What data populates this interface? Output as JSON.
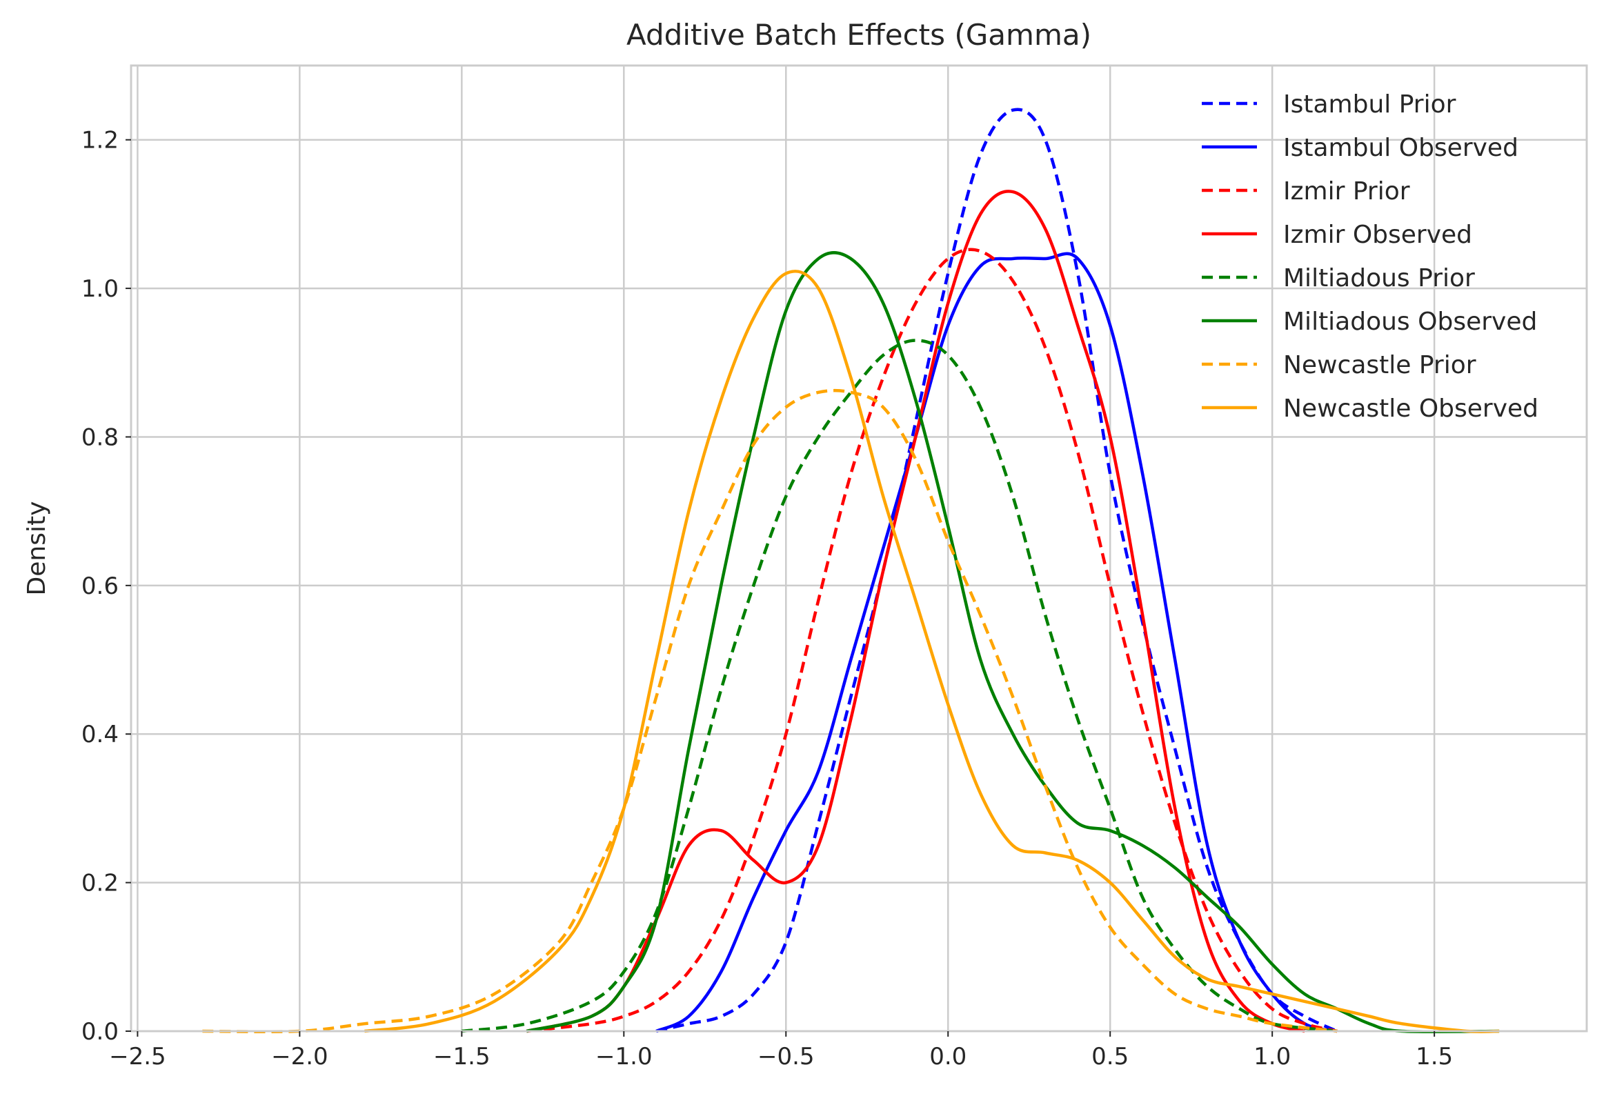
{
  "chart_data": {
    "type": "line",
    "title": "Additive Batch Effects (Gamma)",
    "xlabel": "",
    "ylabel": "Density",
    "xlim": [
      -2.52,
      1.97
    ],
    "ylim": [
      0.0,
      1.3
    ],
    "xticks": [
      -2.5,
      -2.0,
      -1.5,
      -1.0,
      -0.5,
      0.0,
      0.5,
      1.0,
      1.5
    ],
    "xtick_labels": [
      "−2.5",
      "−2.0",
      "−1.5",
      "−1.0",
      "−0.5",
      "0.0",
      "0.5",
      "1.0",
      "1.5"
    ],
    "yticks": [
      0.0,
      0.2,
      0.4,
      0.6,
      0.8,
      1.0,
      1.2
    ],
    "ytick_labels": [
      "0.0",
      "0.2",
      "0.4",
      "0.6",
      "0.8",
      "1.0",
      "1.2"
    ],
    "grid": true,
    "legend_position": "top-right",
    "series": [
      {
        "name": "Istambul Prior",
        "color": "#0000ff",
        "style": "dashed",
        "points": [
          [
            -0.9,
            0.0
          ],
          [
            -0.8,
            0.01
          ],
          [
            -0.7,
            0.02
          ],
          [
            -0.6,
            0.05
          ],
          [
            -0.5,
            0.12
          ],
          [
            -0.4,
            0.28
          ],
          [
            -0.3,
            0.45
          ],
          [
            -0.2,
            0.62
          ],
          [
            -0.1,
            0.82
          ],
          [
            0.0,
            1.02
          ],
          [
            0.1,
            1.18
          ],
          [
            0.2,
            1.24
          ],
          [
            0.3,
            1.2
          ],
          [
            0.4,
            1.02
          ],
          [
            0.5,
            0.75
          ],
          [
            0.6,
            0.55
          ],
          [
            0.7,
            0.38
          ],
          [
            0.8,
            0.22
          ],
          [
            0.9,
            0.12
          ],
          [
            1.0,
            0.05
          ],
          [
            1.1,
            0.02
          ],
          [
            1.2,
            0.0
          ]
        ]
      },
      {
        "name": "Istambul Observed",
        "color": "#0000ff",
        "style": "solid",
        "points": [
          [
            -0.9,
            0.0
          ],
          [
            -0.8,
            0.02
          ],
          [
            -0.7,
            0.08
          ],
          [
            -0.6,
            0.18
          ],
          [
            -0.5,
            0.27
          ],
          [
            -0.4,
            0.35
          ],
          [
            -0.3,
            0.5
          ],
          [
            -0.2,
            0.65
          ],
          [
            -0.1,
            0.8
          ],
          [
            0.0,
            0.95
          ],
          [
            0.1,
            1.03
          ],
          [
            0.2,
            1.04
          ],
          [
            0.3,
            1.04
          ],
          [
            0.4,
            1.04
          ],
          [
            0.5,
            0.95
          ],
          [
            0.6,
            0.75
          ],
          [
            0.7,
            0.5
          ],
          [
            0.8,
            0.25
          ],
          [
            0.9,
            0.12
          ],
          [
            1.0,
            0.05
          ],
          [
            1.1,
            0.01
          ],
          [
            1.2,
            0.0
          ]
        ]
      },
      {
        "name": "Izmir Prior",
        "color": "#ff0000",
        "style": "dashed",
        "points": [
          [
            -1.3,
            0.0
          ],
          [
            -1.1,
            0.01
          ],
          [
            -1.0,
            0.02
          ],
          [
            -0.9,
            0.04
          ],
          [
            -0.8,
            0.08
          ],
          [
            -0.7,
            0.15
          ],
          [
            -0.6,
            0.26
          ],
          [
            -0.5,
            0.4
          ],
          [
            -0.4,
            0.58
          ],
          [
            -0.3,
            0.75
          ],
          [
            -0.2,
            0.88
          ],
          [
            -0.1,
            0.98
          ],
          [
            0.0,
            1.04
          ],
          [
            0.1,
            1.05
          ],
          [
            0.2,
            1.01
          ],
          [
            0.3,
            0.92
          ],
          [
            0.4,
            0.78
          ],
          [
            0.5,
            0.6
          ],
          [
            0.6,
            0.43
          ],
          [
            0.7,
            0.28
          ],
          [
            0.8,
            0.16
          ],
          [
            0.9,
            0.08
          ],
          [
            1.0,
            0.03
          ],
          [
            1.1,
            0.01
          ],
          [
            1.2,
            0.0
          ]
        ]
      },
      {
        "name": "Izmir Observed",
        "color": "#ff0000",
        "style": "solid",
        "points": [
          [
            -1.3,
            0.0
          ],
          [
            -1.1,
            0.02
          ],
          [
            -1.0,
            0.06
          ],
          [
            -0.9,
            0.15
          ],
          [
            -0.8,
            0.25
          ],
          [
            -0.7,
            0.27
          ],
          [
            -0.6,
            0.23
          ],
          [
            -0.5,
            0.2
          ],
          [
            -0.4,
            0.25
          ],
          [
            -0.3,
            0.42
          ],
          [
            -0.2,
            0.62
          ],
          [
            -0.1,
            0.8
          ],
          [
            0.0,
            0.98
          ],
          [
            0.1,
            1.1
          ],
          [
            0.2,
            1.13
          ],
          [
            0.3,
            1.08
          ],
          [
            0.4,
            0.95
          ],
          [
            0.5,
            0.8
          ],
          [
            0.6,
            0.56
          ],
          [
            0.7,
            0.3
          ],
          [
            0.8,
            0.12
          ],
          [
            0.9,
            0.04
          ],
          [
            1.0,
            0.01
          ],
          [
            1.1,
            0.0
          ]
        ]
      },
      {
        "name": "Miltiadous Prior",
        "color": "#008000",
        "style": "dashed",
        "points": [
          [
            -1.5,
            0.0
          ],
          [
            -1.3,
            0.01
          ],
          [
            -1.1,
            0.04
          ],
          [
            -1.0,
            0.08
          ],
          [
            -0.9,
            0.16
          ],
          [
            -0.8,
            0.3
          ],
          [
            -0.7,
            0.46
          ],
          [
            -0.6,
            0.6
          ],
          [
            -0.5,
            0.72
          ],
          [
            -0.4,
            0.8
          ],
          [
            -0.3,
            0.86
          ],
          [
            -0.2,
            0.91
          ],
          [
            -0.1,
            0.93
          ],
          [
            0.0,
            0.91
          ],
          [
            0.1,
            0.84
          ],
          [
            0.2,
            0.72
          ],
          [
            0.3,
            0.56
          ],
          [
            0.4,
            0.42
          ],
          [
            0.5,
            0.3
          ],
          [
            0.6,
            0.18
          ],
          [
            0.7,
            0.11
          ],
          [
            0.8,
            0.06
          ],
          [
            0.9,
            0.03
          ],
          [
            1.0,
            0.01
          ],
          [
            1.2,
            0.0
          ]
        ]
      },
      {
        "name": "Miltiadous Observed",
        "color": "#008000",
        "style": "solid",
        "points": [
          [
            -1.3,
            0.0
          ],
          [
            -1.1,
            0.02
          ],
          [
            -1.0,
            0.06
          ],
          [
            -0.9,
            0.15
          ],
          [
            -0.8,
            0.38
          ],
          [
            -0.7,
            0.6
          ],
          [
            -0.6,
            0.8
          ],
          [
            -0.5,
            0.97
          ],
          [
            -0.4,
            1.04
          ],
          [
            -0.3,
            1.04
          ],
          [
            -0.2,
            0.98
          ],
          [
            -0.1,
            0.85
          ],
          [
            0.0,
            0.68
          ],
          [
            0.1,
            0.5
          ],
          [
            0.2,
            0.4
          ],
          [
            0.3,
            0.33
          ],
          [
            0.4,
            0.28
          ],
          [
            0.5,
            0.27
          ],
          [
            0.6,
            0.25
          ],
          [
            0.7,
            0.22
          ],
          [
            0.8,
            0.18
          ],
          [
            0.9,
            0.14
          ],
          [
            1.0,
            0.09
          ],
          [
            1.1,
            0.05
          ],
          [
            1.2,
            0.03
          ],
          [
            1.3,
            0.01
          ],
          [
            1.4,
            0.0
          ],
          [
            1.7,
            0.0
          ]
        ]
      },
      {
        "name": "Newcastle Prior",
        "color": "#ffa500",
        "style": "dashed",
        "points": [
          [
            -2.3,
            0.0
          ],
          [
            -2.0,
            0.0
          ],
          [
            -1.8,
            0.01
          ],
          [
            -1.6,
            0.02
          ],
          [
            -1.4,
            0.05
          ],
          [
            -1.2,
            0.12
          ],
          [
            -1.1,
            0.2
          ],
          [
            -1.0,
            0.3
          ],
          [
            -0.9,
            0.45
          ],
          [
            -0.8,
            0.6
          ],
          [
            -0.7,
            0.7
          ],
          [
            -0.6,
            0.79
          ],
          [
            -0.5,
            0.84
          ],
          [
            -0.4,
            0.86
          ],
          [
            -0.3,
            0.86
          ],
          [
            -0.2,
            0.84
          ],
          [
            -0.1,
            0.77
          ],
          [
            0.0,
            0.66
          ],
          [
            0.1,
            0.56
          ],
          [
            0.2,
            0.45
          ],
          [
            0.3,
            0.33
          ],
          [
            0.4,
            0.22
          ],
          [
            0.5,
            0.14
          ],
          [
            0.6,
            0.09
          ],
          [
            0.7,
            0.05
          ],
          [
            0.8,
            0.03
          ],
          [
            0.9,
            0.02
          ],
          [
            1.0,
            0.01
          ],
          [
            1.2,
            0.0
          ]
        ]
      },
      {
        "name": "Newcastle Observed",
        "color": "#ffa500",
        "style": "solid",
        "points": [
          [
            -1.8,
            0.0
          ],
          [
            -1.6,
            0.01
          ],
          [
            -1.4,
            0.04
          ],
          [
            -1.2,
            0.11
          ],
          [
            -1.1,
            0.18
          ],
          [
            -1.0,
            0.3
          ],
          [
            -0.9,
            0.5
          ],
          [
            -0.8,
            0.7
          ],
          [
            -0.7,
            0.85
          ],
          [
            -0.6,
            0.96
          ],
          [
            -0.5,
            1.02
          ],
          [
            -0.4,
            1.0
          ],
          [
            -0.3,
            0.88
          ],
          [
            -0.2,
            0.72
          ],
          [
            -0.1,
            0.58
          ],
          [
            0.0,
            0.44
          ],
          [
            0.1,
            0.32
          ],
          [
            0.2,
            0.25
          ],
          [
            0.3,
            0.24
          ],
          [
            0.4,
            0.23
          ],
          [
            0.5,
            0.2
          ],
          [
            0.6,
            0.15
          ],
          [
            0.7,
            0.1
          ],
          [
            0.8,
            0.07
          ],
          [
            0.9,
            0.06
          ],
          [
            1.0,
            0.05
          ],
          [
            1.1,
            0.04
          ],
          [
            1.2,
            0.03
          ],
          [
            1.3,
            0.02
          ],
          [
            1.4,
            0.01
          ],
          [
            1.6,
            0.0
          ],
          [
            1.7,
            0.0
          ]
        ]
      }
    ]
  }
}
